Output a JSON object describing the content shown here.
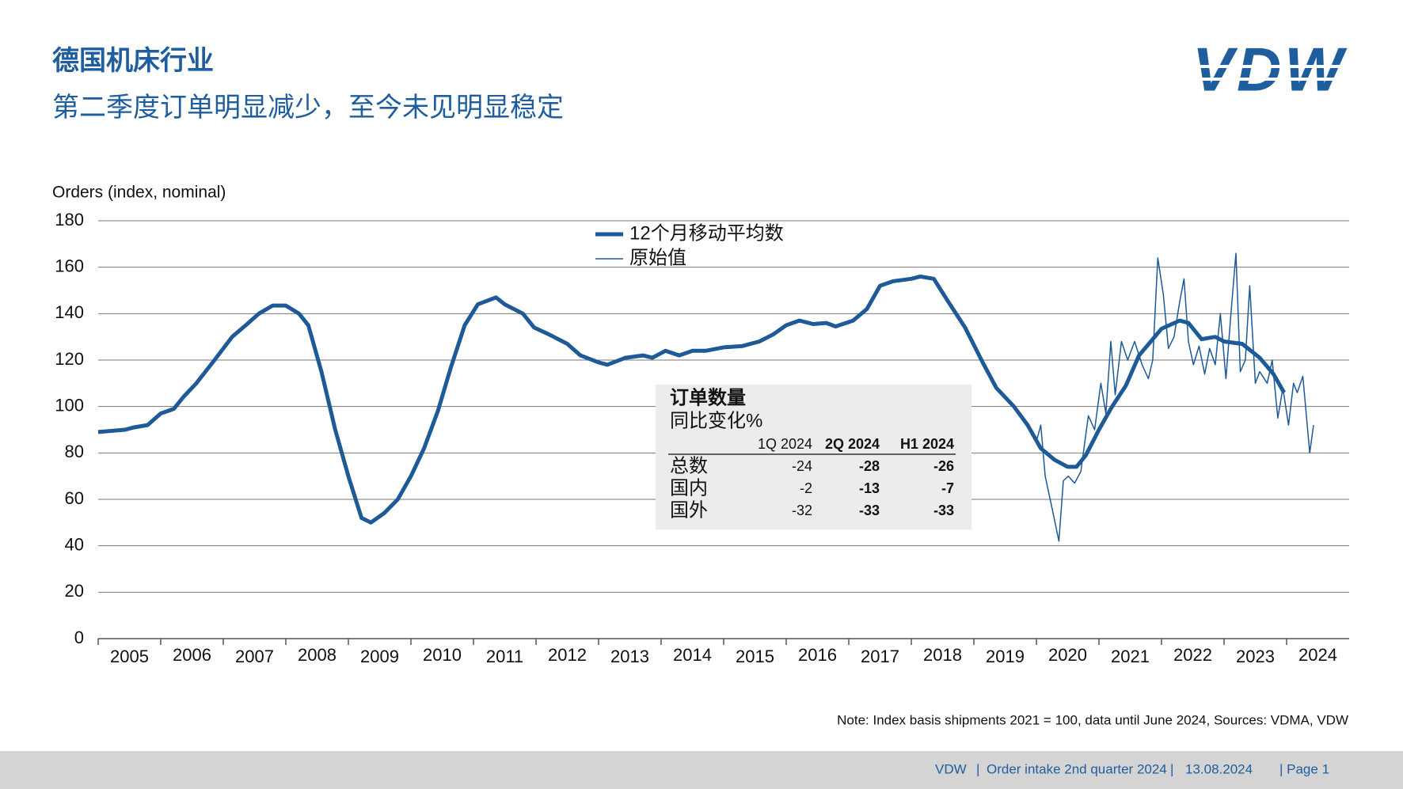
{
  "header": {
    "title": "德国机床行业",
    "subtitle": "第二季度订单明显减少，至今未见明显稳定",
    "logo": "VDW"
  },
  "chart_data": {
    "type": "line",
    "y_label": "Orders (index, nominal)",
    "ylim": [
      0,
      180
    ],
    "yticks": [
      0,
      20,
      40,
      60,
      80,
      100,
      120,
      140,
      160,
      180
    ],
    "grid": true,
    "xlim": [
      2005,
      2025
    ],
    "xticks": [
      2005,
      2006,
      2007,
      2008,
      2009,
      2010,
      2011,
      2012,
      2013,
      2014,
      2015,
      2016,
      2017,
      2018,
      2019,
      2020,
      2021,
      2022,
      2023,
      2024
    ],
    "categories": [
      "2005",
      "2006",
      "2007",
      "2008",
      "2009",
      "2010",
      "2011",
      "2012",
      "2013",
      "2014",
      "2015",
      "2016",
      "2017",
      "2018",
      "2019",
      "2020",
      "2021",
      "2022",
      "2023",
      "2024"
    ],
    "legend": "top-center",
    "series": [
      {
        "name": "12个月移动平均数",
        "color": "#1d5a97",
        "width": "thick",
        "x": [
          2005.0,
          2005.43,
          2005.57,
          2005.79,
          2006.0,
          2006.21,
          2006.36,
          2006.57,
          2006.86,
          2007.14,
          2007.36,
          2007.57,
          2007.79,
          2008.0,
          2008.21,
          2008.36,
          2008.57,
          2008.79,
          2009.0,
          2009.21,
          2009.36,
          2009.57,
          2009.79,
          2010.0,
          2010.21,
          2010.43,
          2010.64,
          2010.86,
          2011.07,
          2011.36,
          2011.5,
          2011.79,
          2011.97,
          2012.21,
          2012.5,
          2012.71,
          2013.0,
          2013.14,
          2013.43,
          2013.71,
          2013.86,
          2014.07,
          2014.29,
          2014.5,
          2014.71,
          2015.0,
          2015.29,
          2015.57,
          2015.79,
          2016.0,
          2016.21,
          2016.43,
          2016.64,
          2016.79,
          2017.07,
          2017.29,
          2017.5,
          2017.71,
          2018.0,
          2018.14,
          2018.36,
          2018.57,
          2018.86,
          2019.14,
          2019.36,
          2019.64,
          2019.86,
          2020.07,
          2020.29,
          2020.5,
          2020.64,
          2020.79,
          2021.0,
          2021.21,
          2021.43,
          2021.64,
          2021.86,
          2022.0,
          2022.29,
          2022.43,
          2022.64,
          2022.86,
          2023.0,
          2023.29,
          2023.57,
          2023.79,
          2023.96
        ],
        "values": [
          89,
          90,
          91,
          92,
          97,
          99,
          104,
          110,
          120,
          130,
          135,
          140,
          143.5,
          143.5,
          140,
          135,
          115,
          90,
          70,
          52,
          50,
          54,
          60,
          70,
          82,
          98,
          117,
          135,
          144,
          147,
          144,
          140,
          134,
          131,
          127,
          122,
          119,
          118,
          121,
          122,
          121,
          124,
          122,
          124,
          124,
          125.5,
          126,
          128,
          131,
          135,
          137,
          135.5,
          136,
          134.5,
          137,
          142,
          152,
          154,
          155,
          156,
          155,
          146,
          134,
          119,
          108,
          100,
          92,
          82,
          77,
          74,
          74,
          79,
          90,
          100,
          109,
          122,
          129,
          133.5,
          137,
          136,
          129,
          130,
          128,
          127,
          121,
          114,
          106
        ]
      },
      {
        "name": "原始值",
        "color": "#1d5a97",
        "width": "thin",
        "x": [
          2020.0,
          2020.07,
          2020.14,
          2020.26,
          2020.36,
          2020.43,
          2020.51,
          2020.61,
          2020.71,
          2020.83,
          2020.93,
          2021.03,
          2021.11,
          2021.19,
          2021.26,
          2021.36,
          2021.46,
          2021.57,
          2021.69,
          2021.79,
          2021.86,
          2021.94,
          2022.03,
          2022.11,
          2022.2,
          2022.29,
          2022.36,
          2022.43,
          2022.51,
          2022.6,
          2022.69,
          2022.77,
          2022.86,
          2022.94,
          2023.03,
          2023.11,
          2023.19,
          2023.26,
          2023.34,
          2023.41,
          2023.5,
          2023.57,
          2023.69,
          2023.77,
          2023.86,
          2023.94,
          2024.03,
          2024.11,
          2024.17,
          2024.26,
          2024.37,
          2024.43
        ],
        "values": [
          85,
          92,
          70,
          55,
          42,
          68,
          70,
          67,
          72,
          96,
          90,
          110,
          97,
          128,
          105,
          128,
          120,
          128,
          118,
          112,
          120,
          164,
          148,
          125,
          130,
          145,
          155,
          128,
          118,
          126,
          114,
          125,
          118,
          140,
          112,
          140,
          166,
          115,
          120,
          152,
          110,
          115,
          110,
          120,
          95,
          108,
          92,
          110,
          106,
          113,
          80,
          92
        ]
      }
    ],
    "note": "Note: Index basis shipments 2021 = 100, data until June 2024, Sources: VDMA, VDW"
  },
  "table": {
    "title": "订单数量",
    "subtitle": "同比变化%",
    "columns": [
      "1Q 2024",
      "2Q 2024",
      "H1 2024"
    ],
    "rows": [
      [
        "总数",
        -24,
        -28,
        -26
      ],
      [
        "国内",
        -2,
        -13,
        -7
      ],
      [
        "国外",
        -32,
        -33,
        -33
      ]
    ]
  },
  "footer": [
    "VDW",
    "|",
    "Order intake 2nd quarter 2024",
    "|",
    "13.08.2024",
    "| Page 1"
  ]
}
